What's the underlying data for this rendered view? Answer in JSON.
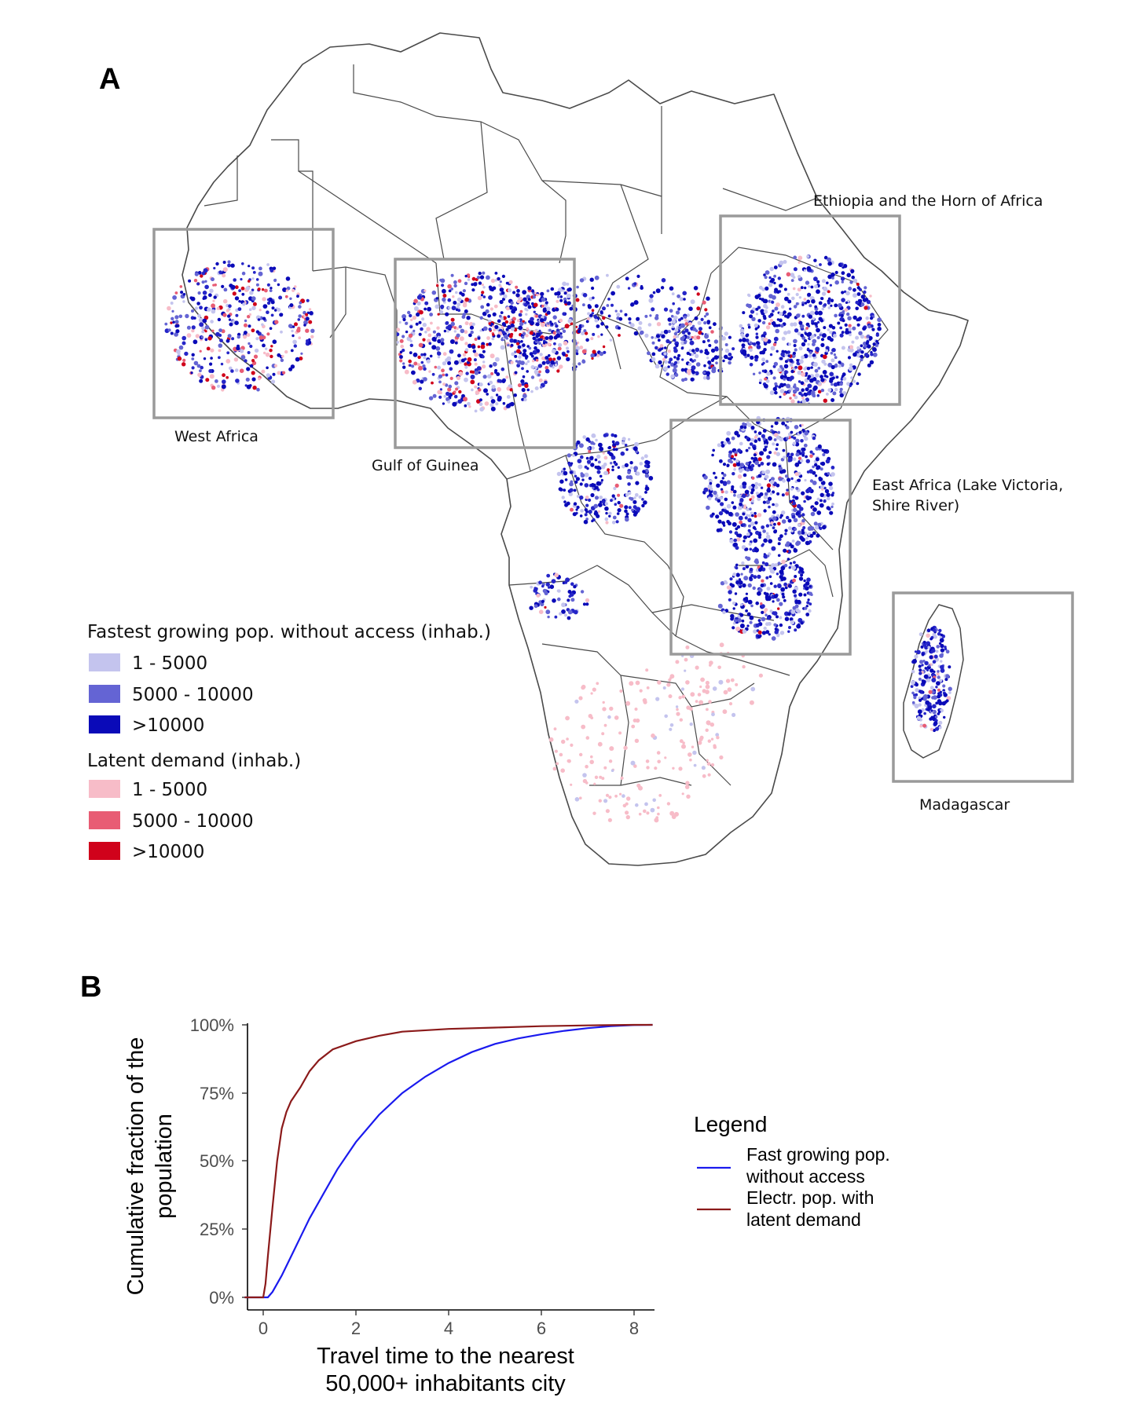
{
  "panel_a": {
    "letter": "A",
    "regions": [
      {
        "name": "West Africa"
      },
      {
        "name": "Gulf of Guinea"
      },
      {
        "name": "Ethiopia and the Horn of Africa"
      },
      {
        "name": "East Africa  (Lake Victoria,",
        "name_line2": "Shire River)"
      },
      {
        "name": "Madagascar"
      }
    ],
    "legend": {
      "title_access": "Fastest growing pop. without access (inhab.)",
      "access_items": [
        {
          "label": "1 - 5000",
          "color": "#c4c4ee"
        },
        {
          "label": "5000 - 10000",
          "color": "#6464d4"
        },
        {
          "label": ">10000",
          "color": "#0a0ab8"
        }
      ],
      "title_latent": "Latent demand (inhab.)",
      "latent_items": [
        {
          "label": "1 - 5000",
          "color": "#f7bcc8"
        },
        {
          "label": "5000 - 10000",
          "color": "#e85c74"
        },
        {
          "label": ">10000",
          "color": "#d0021b"
        }
      ]
    },
    "colors": {
      "border": "#4a4a4a",
      "box": "#9a9a9a"
    }
  },
  "panel_b": {
    "letter": "B",
    "chart_data": {
      "type": "line",
      "xlabel": "Travel time to the nearest",
      "xlabel_line2": "50,000+ inhabitants city",
      "ylabel": "Cumulative fraction of the",
      "ylabel_line2": "population",
      "xlim": [
        -0.4,
        8.4
      ],
      "ylim": [
        0,
        1
      ],
      "x_ticks": [
        "0",
        "2",
        "4",
        "6",
        "8"
      ],
      "y_ticks": [
        "0%",
        "25%",
        "50%",
        "75%",
        "100%"
      ],
      "legend_title": "Legend",
      "series": [
        {
          "name": "Fast growing pop.",
          "name_line2": "without access",
          "color": "#1a1aee",
          "x": [
            -0.4,
            0.1,
            0.2,
            0.4,
            0.6,
            0.8,
            1.0,
            1.3,
            1.6,
            2.0,
            2.5,
            3.0,
            3.5,
            4.0,
            4.5,
            5.0,
            5.5,
            6.0,
            6.5,
            7.0,
            7.5,
            8.0,
            8.4
          ],
          "y": [
            0,
            0,
            0.02,
            0.08,
            0.15,
            0.22,
            0.29,
            0.38,
            0.47,
            0.57,
            0.67,
            0.75,
            0.81,
            0.86,
            0.9,
            0.93,
            0.95,
            0.965,
            0.978,
            0.988,
            0.995,
            0.999,
            1.0
          ]
        },
        {
          "name": "Electr. pop. with",
          "name_line2": "latent demand",
          "color": "#8b1a1a",
          "x": [
            -0.4,
            0.0,
            0.05,
            0.1,
            0.2,
            0.3,
            0.4,
            0.5,
            0.6,
            0.8,
            1.0,
            1.2,
            1.5,
            2.0,
            2.5,
            3.0,
            4.0,
            5.0,
            6.0,
            7.0,
            8.0,
            8.4
          ],
          "y": [
            0,
            0,
            0.05,
            0.15,
            0.33,
            0.5,
            0.62,
            0.68,
            0.72,
            0.77,
            0.83,
            0.87,
            0.91,
            0.94,
            0.96,
            0.975,
            0.985,
            0.99,
            0.995,
            0.998,
            1.0,
            1.0
          ]
        }
      ]
    }
  }
}
